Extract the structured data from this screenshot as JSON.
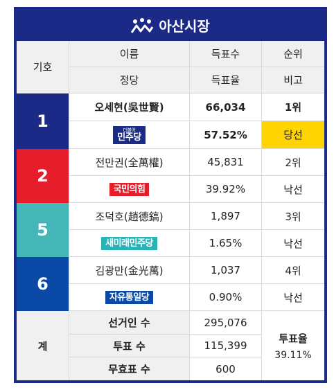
{
  "title": "아산시장",
  "header": {
    "col1": "기호",
    "r1": [
      "이름",
      "득표수",
      "순위"
    ],
    "r2": [
      "정당",
      "득표율",
      "비고"
    ]
  },
  "candidates": [
    {
      "no": "1",
      "name": "오세현(吳世賢)",
      "votes": "66,034",
      "rank": "1위",
      "party": "민주당",
      "party_small": "더불어",
      "rate": "57.52%",
      "note": "당선",
      "color": "#1a2a86",
      "party_color": "#1a2a86"
    },
    {
      "no": "2",
      "name": "전만권(全萬權)",
      "votes": "45,831",
      "rank": "2위",
      "party": "국민의힘",
      "rate": "39.92%",
      "note": "낙선",
      "color": "#e61e2b",
      "party_color": "#e61e2b"
    },
    {
      "no": "5",
      "name": "조덕호(趙德鎬)",
      "votes": "1,897",
      "rank": "3위",
      "party": "새미래민주당",
      "rate": "1.65%",
      "note": "낙선",
      "color": "#45b6b8",
      "party_color": "#2ab3b6"
    },
    {
      "no": "6",
      "name": "김광만(金光萬)",
      "votes": "1,037",
      "rank": "4위",
      "party": "자유통일당",
      "rate": "0.90%",
      "note": "낙선",
      "color": "#0a4aa6",
      "party_color": "#0a4aa6"
    }
  ],
  "totals": {
    "label": "계",
    "electors_label": "선거인 수",
    "electors": "295,076",
    "votes_label": "투표 수",
    "votes": "115,399",
    "invalid_label": "무효표 수",
    "invalid": "600",
    "turnout_label": "투표율",
    "turnout": "39.11%"
  }
}
